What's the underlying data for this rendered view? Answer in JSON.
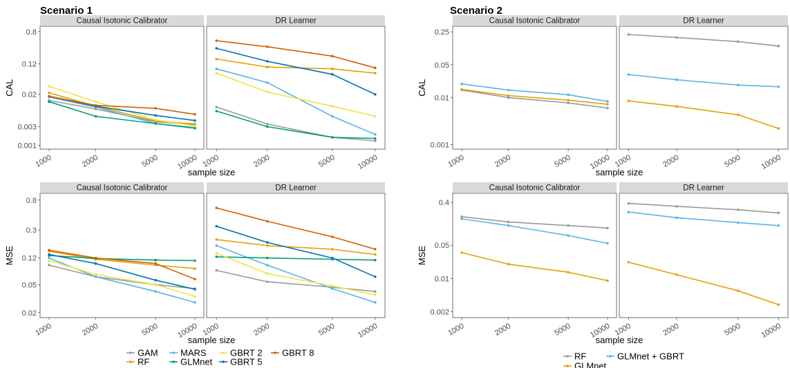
{
  "chart_data": [
    {
      "type": "line",
      "scenario": "Scenario 1",
      "panel": "Causal Isotonic Calibrator",
      "xlabel": "sample size",
      "ylabel": "CAL",
      "x_ticks": [
        "1000",
        "2000",
        "5000",
        "10000"
      ],
      "y_ticks": [
        "0.001",
        "0.003",
        "0.02",
        "0.12",
        "0.8"
      ],
      "log_y": true,
      "ylim": [
        0.0008,
        1.1
      ],
      "series": [
        {
          "name": "GAM",
          "values": [
            0.014,
            0.0085,
            0.004,
            0.0034
          ]
        },
        {
          "name": "RF",
          "values": [
            0.022,
            0.01,
            0.0042,
            0.0035
          ]
        },
        {
          "name": "MARS",
          "values": [
            0.017,
            0.0095,
            0.0036,
            0.0027
          ]
        },
        {
          "name": "GLMnet",
          "values": [
            0.013,
            0.0055,
            0.0036,
            0.0028
          ]
        },
        {
          "name": "GBRT 2",
          "values": [
            0.032,
            0.013,
            0.0045,
            0.0031
          ]
        },
        {
          "name": "GBRT 5",
          "values": [
            0.018,
            0.01,
            0.0058,
            0.0043
          ]
        },
        {
          "name": "GBRT 8",
          "values": [
            0.018,
            0.0105,
            0.0088,
            0.0062
          ]
        }
      ]
    },
    {
      "type": "line",
      "scenario": "Scenario 1",
      "panel": "DR Learner",
      "xlabel": "sample size",
      "ylabel": "CAL",
      "x_ticks": [
        "1000",
        "2000",
        "5000",
        "10000"
      ],
      "y_ticks": [
        "0.001",
        "0.003",
        "0.02",
        "0.12",
        "0.8"
      ],
      "log_y": true,
      "ylim": [
        0.0008,
        1.1
      ],
      "series": [
        {
          "name": "GAM",
          "values": [
            0.0095,
            0.0035,
            0.0016,
            0.0013
          ]
        },
        {
          "name": "RF",
          "values": [
            0.16,
            0.1,
            0.09,
            0.07
          ]
        },
        {
          "name": "MARS",
          "values": [
            0.09,
            0.04,
            0.0055,
            0.0019
          ]
        },
        {
          "name": "GLMnet",
          "values": [
            0.0075,
            0.003,
            0.0016,
            0.0015
          ]
        },
        {
          "name": "GBRT 2",
          "values": [
            0.07,
            0.023,
            0.01,
            0.0055
          ]
        },
        {
          "name": "GBRT 5",
          "values": [
            0.3,
            0.14,
            0.065,
            0.02
          ]
        },
        {
          "name": "GBRT 8",
          "values": [
            0.47,
            0.33,
            0.19,
            0.095
          ]
        }
      ]
    },
    {
      "type": "line",
      "scenario": "Scenario 1",
      "panel": "Causal Isotonic Calibrator",
      "xlabel": "sample size",
      "ylabel": "MSE",
      "x_ticks": [
        "1000",
        "2000",
        "5000",
        "10000"
      ],
      "y_ticks": [
        "0.02",
        "0.05",
        "0.12",
        "0.3",
        "0.8"
      ],
      "log_y": true,
      "ylim": [
        0.017,
        1.0
      ],
      "series": [
        {
          "name": "GAM",
          "values": [
            0.095,
            0.065,
            0.05,
            0.044
          ]
        },
        {
          "name": "RF",
          "values": [
            0.15,
            0.115,
            0.095,
            0.085
          ]
        },
        {
          "name": "MARS",
          "values": [
            0.12,
            0.065,
            0.04,
            0.028
          ]
        },
        {
          "name": "GLMnet",
          "values": [
            0.13,
            0.118,
            0.112,
            0.11
          ]
        },
        {
          "name": "GBRT 2",
          "values": [
            0.11,
            0.07,
            0.05,
            0.034
          ]
        },
        {
          "name": "GBRT 5",
          "values": [
            0.135,
            0.1,
            0.058,
            0.043
          ]
        },
        {
          "name": "GBRT 8",
          "values": [
            0.155,
            0.12,
            0.1,
            0.06
          ]
        }
      ]
    },
    {
      "type": "line",
      "scenario": "Scenario 1",
      "panel": "DR Learner",
      "xlabel": "sample size",
      "ylabel": "MSE",
      "x_ticks": [
        "1000",
        "2000",
        "5000",
        "10000"
      ],
      "y_ticks": [
        "0.02",
        "0.05",
        "0.12",
        "0.3",
        "0.8"
      ],
      "log_y": true,
      "ylim": [
        0.017,
        1.0
      ],
      "series": [
        {
          "name": "GAM",
          "values": [
            0.08,
            0.055,
            0.046,
            0.04
          ]
        },
        {
          "name": "RF",
          "values": [
            0.22,
            0.18,
            0.16,
            0.135
          ]
        },
        {
          "name": "MARS",
          "values": [
            0.18,
            0.095,
            0.044,
            0.028
          ]
        },
        {
          "name": "GLMnet",
          "values": [
            0.125,
            0.12,
            0.115,
            0.112
          ]
        },
        {
          "name": "GBRT 2",
          "values": [
            0.14,
            0.072,
            0.048,
            0.036
          ]
        },
        {
          "name": "GBRT 5",
          "values": [
            0.34,
            0.2,
            0.12,
            0.065
          ]
        },
        {
          "name": "GBRT 8",
          "values": [
            0.62,
            0.4,
            0.24,
            0.16
          ]
        }
      ]
    },
    {
      "type": "line",
      "scenario": "Scenario 2",
      "panel": "Causal Isotonic Calibrator",
      "xlabel": "sample size",
      "ylabel": "CAL",
      "x_ticks": [
        "1000",
        "2000",
        "5000",
        "10000"
      ],
      "y_ticks": [
        "0.001",
        "0.01",
        "0.05",
        "0.25"
      ],
      "log_y": true,
      "ylim": [
        0.0008,
        0.33
      ],
      "series": [
        {
          "name": "RF",
          "values": [
            0.0145,
            0.01,
            0.0077,
            0.006
          ]
        },
        {
          "name": "GLMnet",
          "values": [
            0.015,
            0.011,
            0.0088,
            0.0072
          ]
        },
        {
          "name": "GLMnet + GBRT",
          "values": [
            0.0195,
            0.0145,
            0.0115,
            0.0083
          ]
        }
      ]
    },
    {
      "type": "line",
      "scenario": "Scenario 2",
      "panel": "DR Learner",
      "xlabel": "sample size",
      "ylabel": "CAL",
      "x_ticks": [
        "1000",
        "2000",
        "5000",
        "10000"
      ],
      "y_ticks": [
        "0.001",
        "0.01",
        "0.05",
        "0.25"
      ],
      "log_y": true,
      "ylim": [
        0.0008,
        0.33
      ],
      "series": [
        {
          "name": "RF",
          "values": [
            0.22,
            0.19,
            0.155,
            0.125
          ]
        },
        {
          "name": "GLMnet",
          "values": [
            0.0085,
            0.0065,
            0.0043,
            0.0022
          ]
        },
        {
          "name": "GLMnet + GBRT",
          "values": [
            0.031,
            0.024,
            0.0185,
            0.017
          ]
        }
      ]
    },
    {
      "type": "line",
      "scenario": "Scenario 2",
      "panel": "Causal Isotonic Calibrator",
      "xlabel": "sample size",
      "ylabel": "MSE",
      "x_ticks": [
        "1000",
        "2000",
        "5000",
        "10000"
      ],
      "y_ticks": [
        "0.002",
        "0.01",
        "0.05",
        "0.4"
      ],
      "log_y": true,
      "ylim": [
        0.0015,
        0.62
      ],
      "series": [
        {
          "name": "RF",
          "values": [
            0.2,
            0.155,
            0.13,
            0.115
          ]
        },
        {
          "name": "GLMnet",
          "values": [
            0.035,
            0.02,
            0.0135,
            0.009
          ]
        },
        {
          "name": "GLMnet + GBRT",
          "values": [
            0.18,
            0.13,
            0.08,
            0.055
          ]
        }
      ]
    },
    {
      "type": "line",
      "scenario": "Scenario 2",
      "panel": "DR Learner",
      "xlabel": "sample size",
      "ylabel": "MSE",
      "x_ticks": [
        "1000",
        "2000",
        "5000",
        "10000"
      ],
      "y_ticks": [
        "0.002",
        "0.01",
        "0.05",
        "0.4"
      ],
      "log_y": true,
      "ylim": [
        0.0015,
        0.62
      ],
      "series": [
        {
          "name": "RF",
          "values": [
            0.38,
            0.33,
            0.28,
            0.24
          ]
        },
        {
          "name": "GLMnet",
          "values": [
            0.022,
            0.012,
            0.0055,
            0.0028
          ]
        },
        {
          "name": "GLMnet + GBRT",
          "values": [
            0.25,
            0.19,
            0.15,
            0.13
          ]
        }
      ]
    }
  ],
  "legends": [
    {
      "scenario": "Scenario 1",
      "items": [
        {
          "name": "GAM",
          "color": "#999999"
        },
        {
          "name": "RF",
          "color": "#E69F00"
        },
        {
          "name": "MARS",
          "color": "#56B4E9"
        },
        {
          "name": "GLMnet",
          "color": "#009E73"
        },
        {
          "name": "GBRT 2",
          "color": "#F0E442"
        },
        {
          "name": "GBRT 5",
          "color": "#0072B2"
        },
        {
          "name": "GBRT 8",
          "color": "#D55E00"
        }
      ]
    },
    {
      "scenario": "Scenario 2",
      "items": [
        {
          "name": "RF",
          "color": "#999999"
        },
        {
          "name": "GLMnet",
          "color": "#E69F00"
        },
        {
          "name": "GLMnet + GBRT",
          "color": "#56B4E9"
        }
      ]
    }
  ]
}
